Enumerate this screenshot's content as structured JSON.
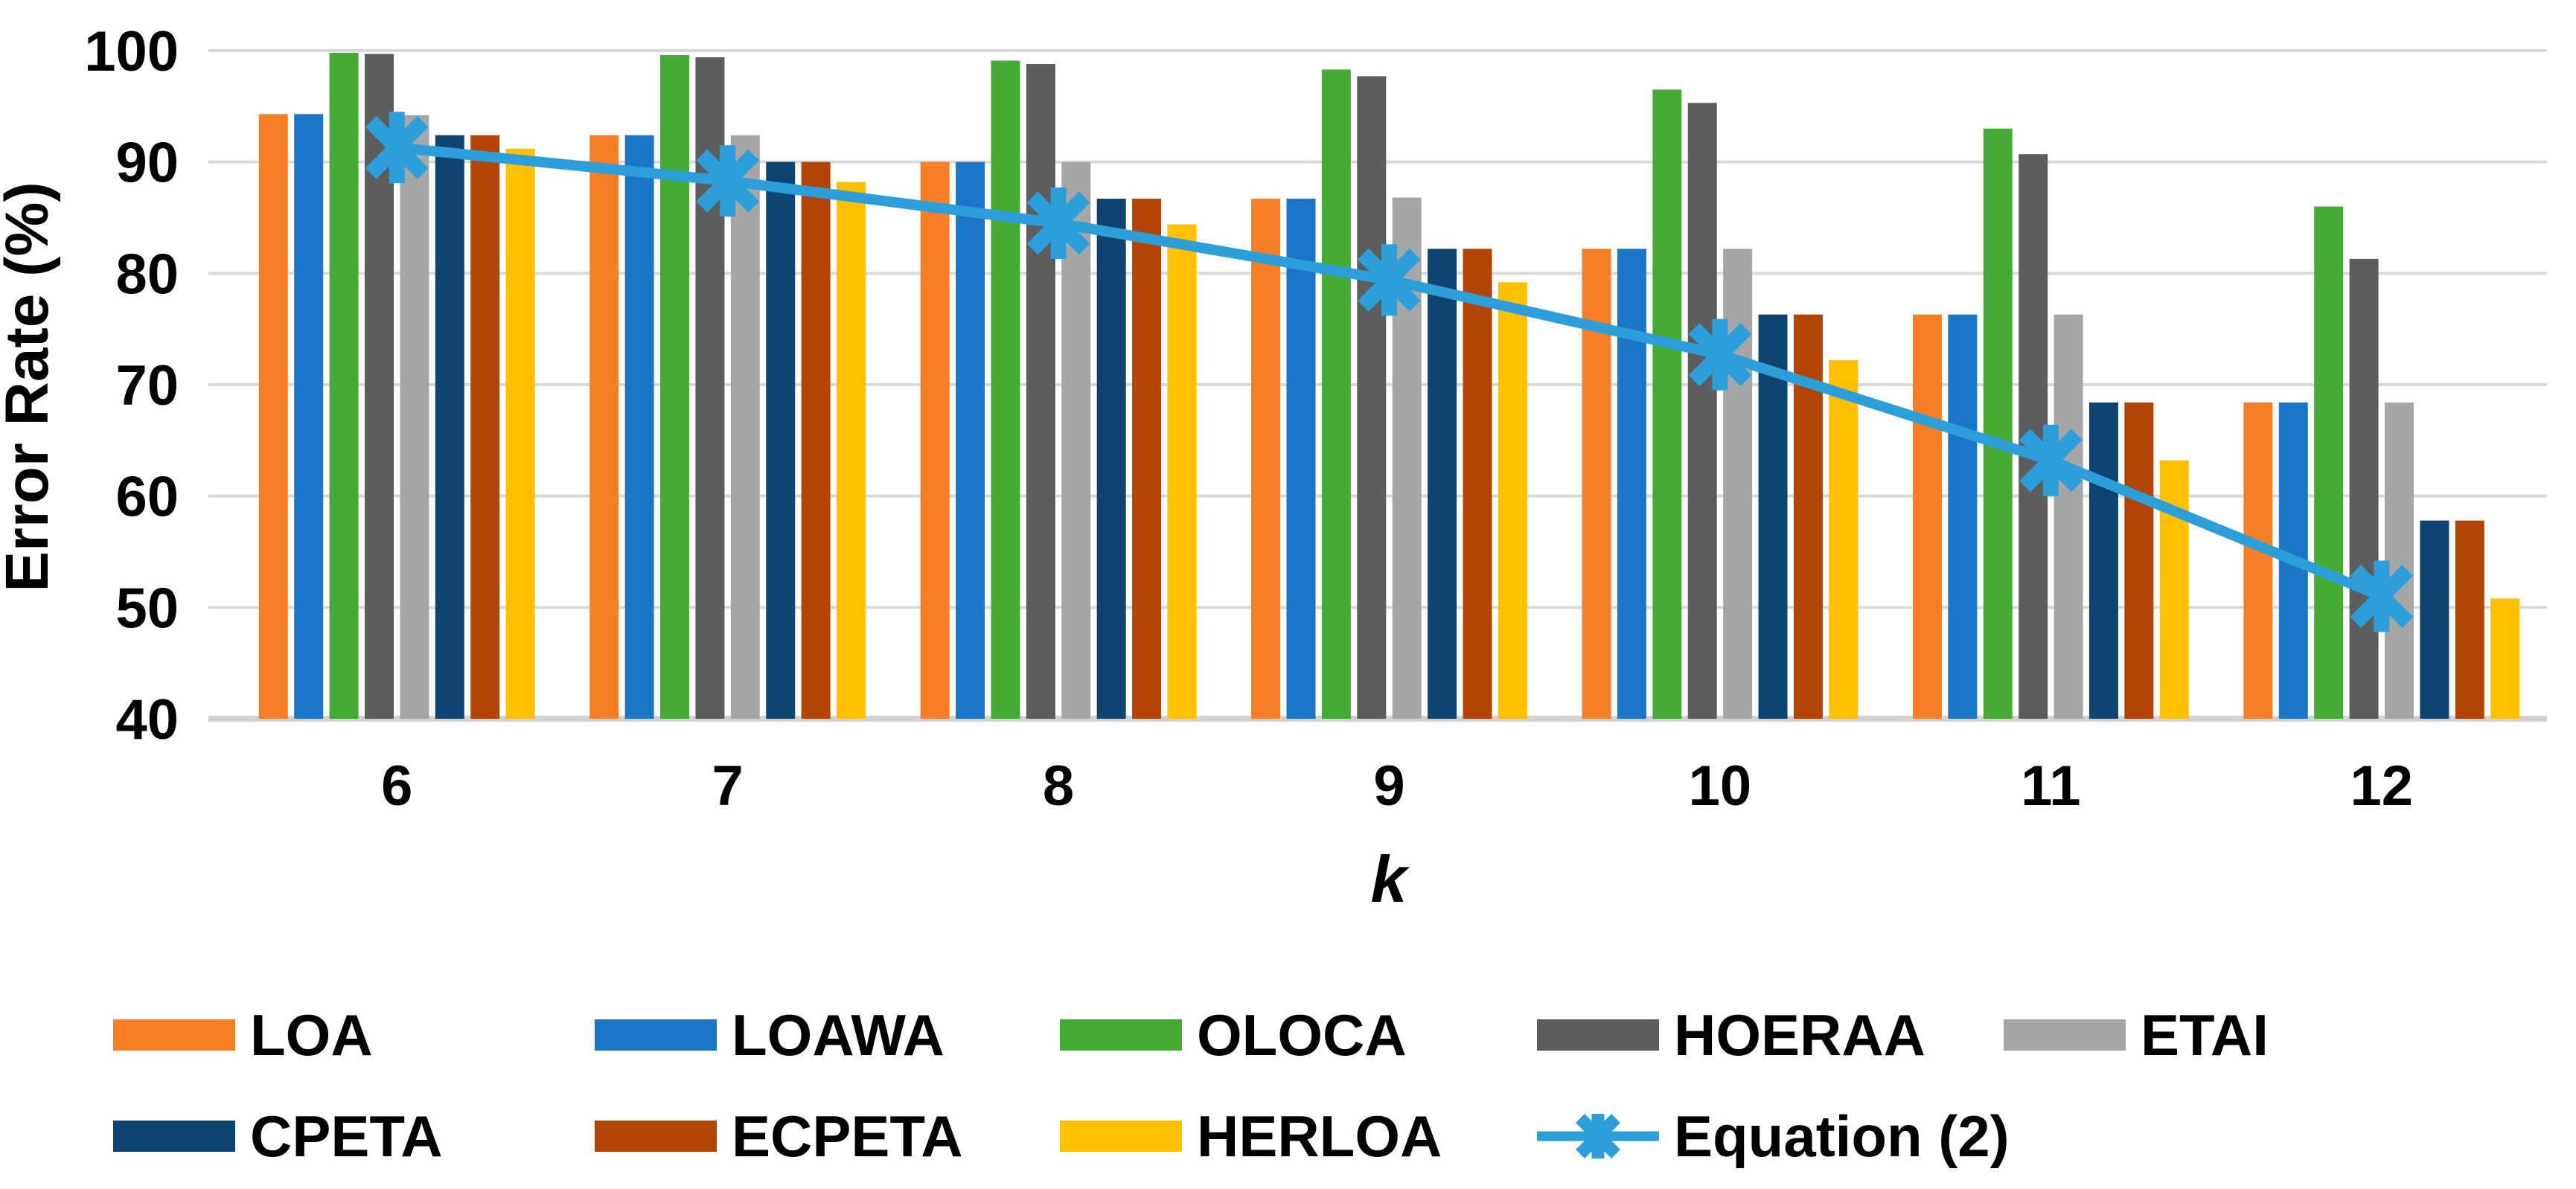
{
  "chart_data": {
    "type": "bar",
    "title": "",
    "xlabel": "k",
    "ylabel": "Error Rate (%)",
    "ylim": [
      40,
      100
    ],
    "yticks": [
      40,
      50,
      60,
      70,
      80,
      90,
      100
    ],
    "grid": true,
    "legend_position": "bottom",
    "categories": [
      "6",
      "7",
      "8",
      "9",
      "10",
      "11",
      "12"
    ],
    "series": [
      {
        "name": "LOA",
        "color": "#F57E27",
        "values": [
          94.3,
          92.4,
          90.0,
          86.7,
          82.2,
          76.3,
          68.4
        ]
      },
      {
        "name": "LOAWA",
        "color": "#1B76C8",
        "values": [
          94.3,
          92.4,
          90.0,
          86.7,
          82.2,
          76.3,
          68.4
        ]
      },
      {
        "name": "OLOCA",
        "color": "#45AB35",
        "values": [
          99.8,
          99.6,
          99.1,
          98.3,
          96.5,
          93.0,
          86.0
        ]
      },
      {
        "name": "HOERAA",
        "color": "#5D5D5D",
        "values": [
          99.7,
          99.4,
          98.8,
          97.7,
          95.3,
          90.7,
          81.3
        ]
      },
      {
        "name": "ETAI",
        "color": "#A6A6A6",
        "values": [
          94.2,
          92.4,
          90.0,
          86.8,
          82.2,
          76.3,
          68.4
        ]
      },
      {
        "name": "CPETA",
        "color": "#0F4372",
        "values": [
          92.4,
          90.0,
          86.7,
          82.2,
          76.3,
          68.4,
          57.8
        ]
      },
      {
        "name": "ECPETA",
        "color": "#B24405",
        "values": [
          92.4,
          90.0,
          86.7,
          82.2,
          76.3,
          68.4,
          57.8
        ]
      },
      {
        "name": "HERLOA",
        "color": "#FFC001",
        "values": [
          91.2,
          88.2,
          84.4,
          79.2,
          72.2,
          63.2,
          50.8
        ]
      }
    ],
    "line_series": {
      "name": "Equation (2)",
      "color": "#2C9FDB",
      "marker": "asterisk",
      "values": [
        91.3,
        88.3,
        84.5,
        79.4,
        72.7,
        63.2,
        51.0
      ]
    }
  },
  "legend": {
    "items": [
      {
        "label": "LOA",
        "color": "#F57E27",
        "type": "rect"
      },
      {
        "label": "LOAWA",
        "color": "#1B76C8",
        "type": "rect"
      },
      {
        "label": "OLOCA",
        "color": "#45AB35",
        "type": "rect"
      },
      {
        "label": "HOERAA",
        "color": "#5D5D5D",
        "type": "rect"
      },
      {
        "label": "ETAI",
        "color": "#A6A6A6",
        "type": "rect"
      },
      {
        "label": "CPETA",
        "color": "#0F4372",
        "type": "rect"
      },
      {
        "label": "ECPETA",
        "color": "#B24405",
        "type": "rect"
      },
      {
        "label": "HERLOA",
        "color": "#FFC001",
        "type": "rect"
      },
      {
        "label": "Equation (2)",
        "color": "#2C9FDB",
        "type": "line-asterisk"
      }
    ]
  },
  "colors": {
    "gridline": "#D9D9D9",
    "baseline": "#D2D2D2",
    "text": "#000000",
    "background": "#FFFFFF"
  }
}
